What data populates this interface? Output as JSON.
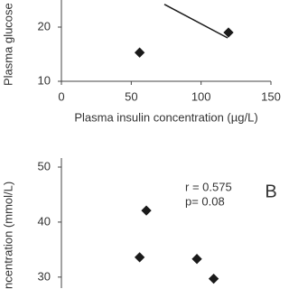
{
  "chart_data": [
    {
      "type": "scatter",
      "ylabel": "Plasma glucose",
      "xlabel": "Plasma insulin concentration (µg/L)",
      "x": [
        56,
        119.6
      ],
      "values": [
        15.3,
        19
      ],
      "color": "#1a1a1a",
      "trend_line": {
        "x": [
          73.7,
          119
        ],
        "y": [
          24.2,
          18
        ]
      },
      "xlim": [
        0,
        150
      ],
      "xticks": [
        0,
        50,
        100,
        150
      ],
      "ylim": [
        10,
        25
      ],
      "yticks": [
        10,
        20
      ]
    },
    {
      "type": "scatter",
      "ylabel": "ncentration (mmol/L)",
      "panel_label": "B",
      "annotations": [
        "r = 0.575",
        "p= 0.08"
      ],
      "x": [
        60.8,
        56,
        97,
        109
      ],
      "values": [
        42.1,
        33.6,
        33.3,
        29.7
      ],
      "color": "#1a1a1a",
      "xlim": [
        0,
        150
      ],
      "ylim": [
        28,
        50
      ],
      "yticks": [
        30,
        40,
        50
      ]
    }
  ]
}
